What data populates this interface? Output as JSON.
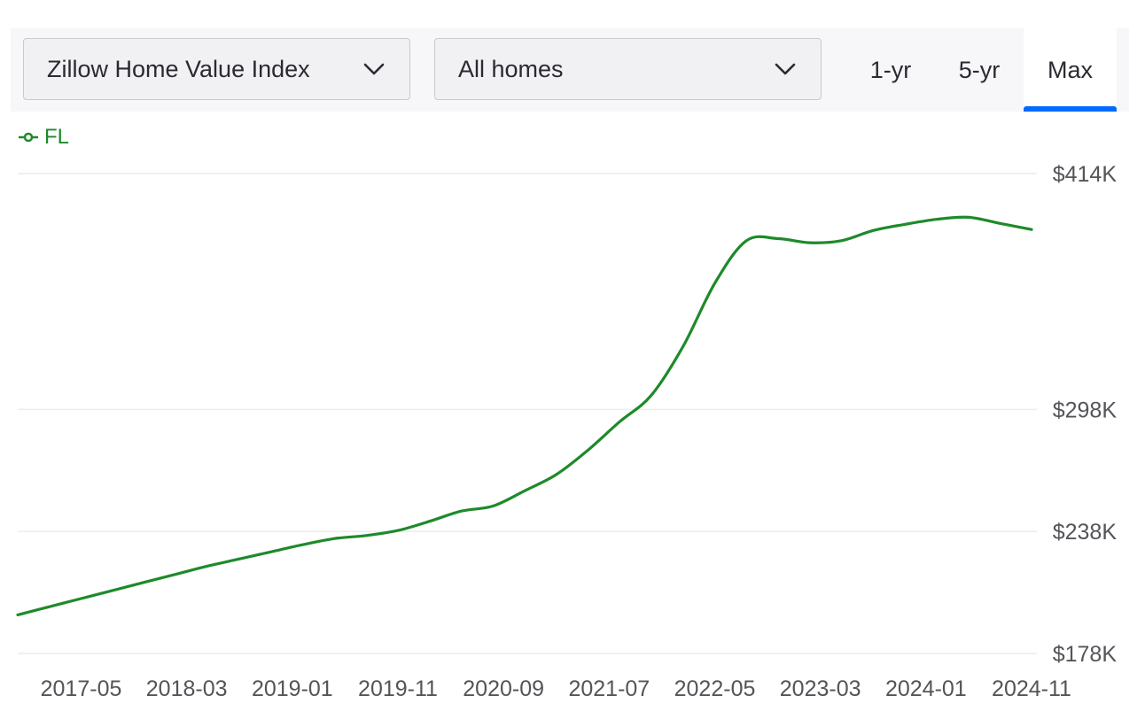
{
  "controls": {
    "metric_dropdown": "Zillow Home Value Index",
    "home_type_dropdown": "All homes",
    "tabs": [
      {
        "label": "1-yr",
        "selected": false
      },
      {
        "label": "5-yr",
        "selected": false
      },
      {
        "label": "Max",
        "selected": true
      }
    ]
  },
  "colors": {
    "series": "#1e8a2a",
    "tab_underline": "#006aff",
    "grid": "#ececec"
  },
  "chart_data": {
    "type": "line",
    "legend": {
      "placement": "top-left"
    },
    "grid": true,
    "yaxis": {
      "ticks": [
        "$414K",
        "$298K",
        "$238K",
        "$178K"
      ],
      "tick_values": [
        414000,
        298000,
        238000,
        178000
      ],
      "range": [
        178000,
        414000
      ],
      "position": "right"
    },
    "xaxis": {
      "ticks": [
        "2017-05",
        "2018-03",
        "2019-01",
        "2019-11",
        "2020-09",
        "2021-07",
        "2022-05",
        "2023-03",
        "2024-01",
        "2024-11"
      ],
      "range": [
        "2016-11",
        "2024-11"
      ]
    },
    "series": [
      {
        "name": "FL",
        "color": "#1e8a2a",
        "x": [
          "2016-11",
          "2017-02",
          "2017-05",
          "2017-08",
          "2017-11",
          "2018-02",
          "2018-05",
          "2018-08",
          "2018-11",
          "2019-02",
          "2019-05",
          "2019-08",
          "2019-11",
          "2020-02",
          "2020-05",
          "2020-08",
          "2020-11",
          "2021-02",
          "2021-05",
          "2021-08",
          "2021-11",
          "2022-02",
          "2022-05",
          "2022-08",
          "2022-11",
          "2023-02",
          "2023-05",
          "2023-08",
          "2023-11",
          "2024-02",
          "2024-05",
          "2024-08",
          "2024-11"
        ],
        "y": [
          197000,
          201000,
          205000,
          209000,
          213000,
          217000,
          221000,
          224500,
          228000,
          231500,
          234500,
          236000,
          238500,
          243000,
          248000,
          250500,
          258000,
          266000,
          278000,
          292000,
          305000,
          329000,
          360000,
          381000,
          382000,
          380000,
          381000,
          386000,
          389000,
          391500,
          392500,
          389500,
          386500
        ]
      }
    ]
  }
}
